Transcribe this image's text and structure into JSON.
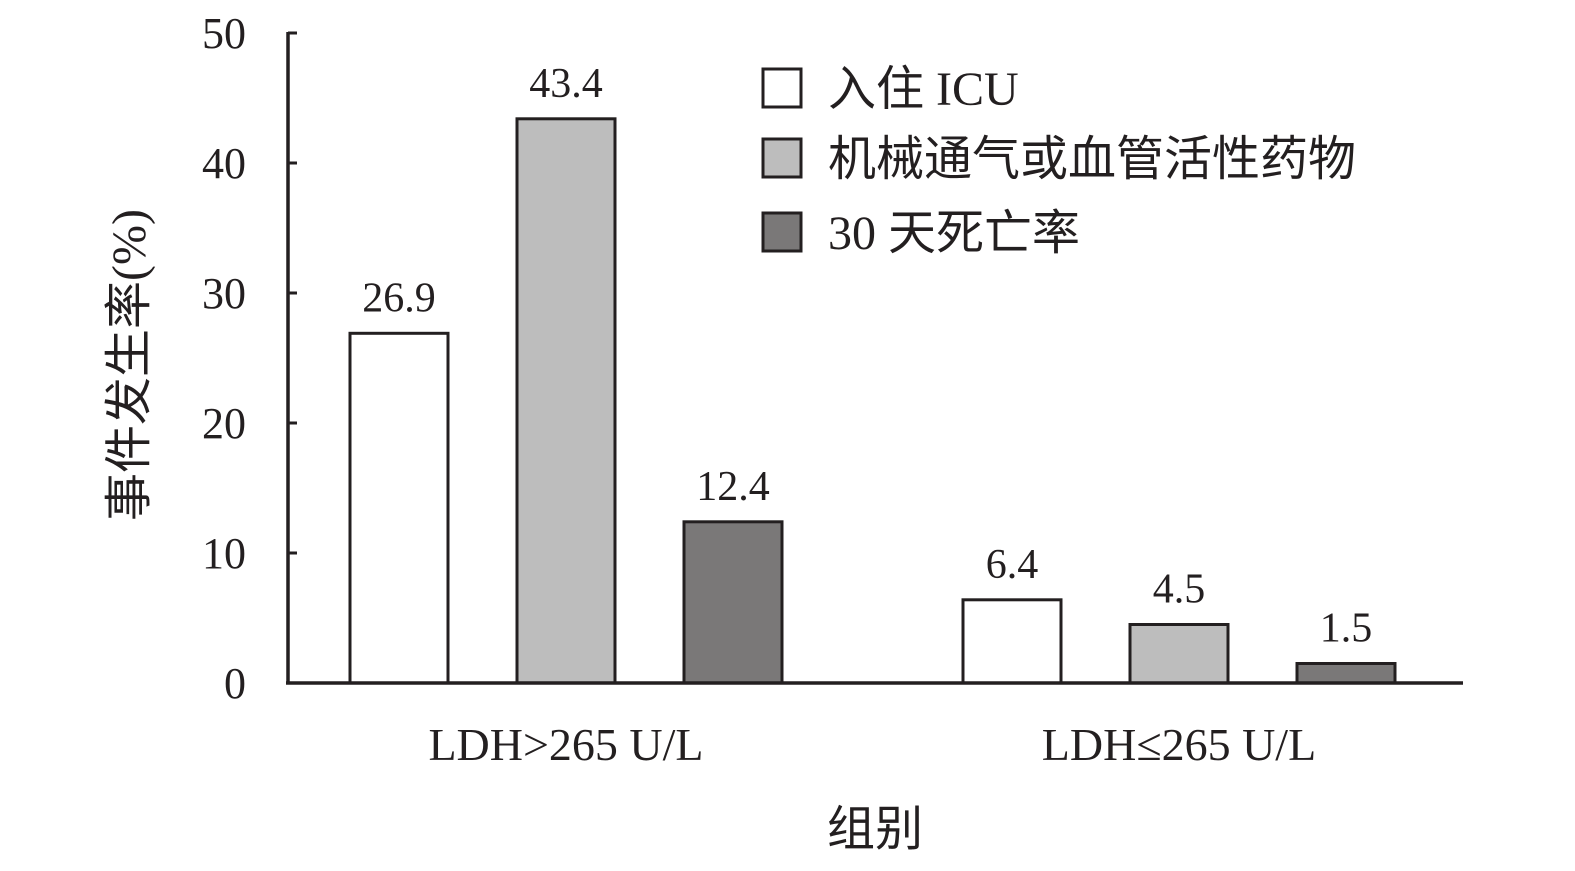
{
  "chart_data": {
    "type": "bar",
    "title": "",
    "xlabel": "组别",
    "ylabel": "事件发生率(%)",
    "ylim": [
      0,
      50
    ],
    "yticks": [
      "0",
      "10",
      "20",
      "30",
      "40",
      "50"
    ],
    "categories": [
      "LDH>265 U/L",
      "LDH≤265 U/L"
    ],
    "series": [
      {
        "name": "入住 ICU",
        "values": [
          26.9,
          6.4
        ],
        "value_labels": [
          "26.9",
          "6.4"
        ],
        "color": "#ffffff"
      },
      {
        "name": "机械通气或血管活性药物",
        "values": [
          43.4,
          4.5
        ],
        "value_labels": [
          "43.4",
          "4.5"
        ],
        "color": "#bdbdbd"
      },
      {
        "name": "30 天死亡率",
        "values": [
          12.4,
          1.5
        ],
        "value_labels": [
          "12.4",
          "1.5"
        ],
        "color": "#7a7878"
      }
    ],
    "legend_position": "top-right",
    "grid": false,
    "stroke_color": "#231f20"
  }
}
